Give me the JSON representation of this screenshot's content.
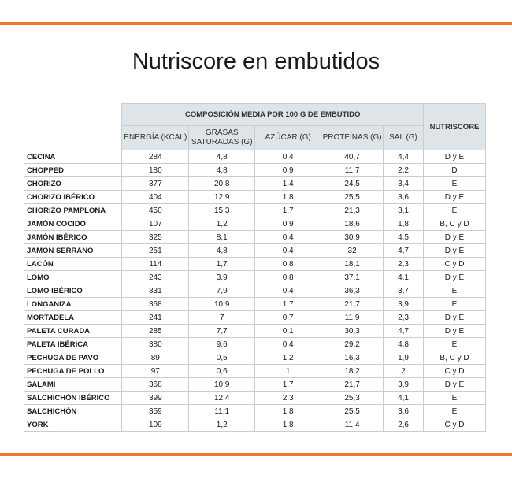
{
  "title": "Nutriscore en embutidos",
  "table": {
    "group_header": "COMPOSICIÓN MEDIA POR 100 G DE EMBUTIDO",
    "nutriscore_header": "NUTRISCORE",
    "columns": [
      "ENERGÍA (KCAL)",
      "GRASAS SATURADAS (G)",
      "AZÚCAR (G)",
      "PROTEÍNAS (G)",
      "SAL (G)"
    ],
    "rows": [
      {
        "name": "CECINA",
        "energia": "284",
        "grasas": "4,8",
        "azucar": "0,4",
        "proteinas": "40,7",
        "sal": "4,4",
        "nutriscore": "D y E"
      },
      {
        "name": "CHOPPED",
        "energia": "180",
        "grasas": "4,8",
        "azucar": "0,9",
        "proteinas": "11,7",
        "sal": "2,2",
        "nutriscore": "D"
      },
      {
        "name": "CHORIZO",
        "energia": "377",
        "grasas": "20,8",
        "azucar": "1,4",
        "proteinas": "24,5",
        "sal": "3,4",
        "nutriscore": "E"
      },
      {
        "name": "CHORIZO IBÉRICO",
        "energia": "404",
        "grasas": "12,9",
        "azucar": "1,8",
        "proteinas": "25,5",
        "sal": "3,6",
        "nutriscore": "D y E"
      },
      {
        "name": "CHORIZO PAMPLONA",
        "energia": "450",
        "grasas": "15,3",
        "azucar": "1,7",
        "proteinas": "21,3",
        "sal": "3,1",
        "nutriscore": "E"
      },
      {
        "name": "JAMÓN COCIDO",
        "energia": "107",
        "grasas": "1,2",
        "azucar": "0,9",
        "proteinas": "18,6",
        "sal": "1,8",
        "nutriscore": "B, C y D"
      },
      {
        "name": "JAMÓN IBÉRICO",
        "energia": "325",
        "grasas": "8,1",
        "azucar": "0,4",
        "proteinas": "30,9",
        "sal": "4,5",
        "nutriscore": "D y E"
      },
      {
        "name": "JAMÓN SERRANO",
        "energia": "251",
        "grasas": "4,8",
        "azucar": "0,4",
        "proteinas": "32",
        "sal": "4,7",
        "nutriscore": "D y E"
      },
      {
        "name": "LACÓN",
        "energia": "114",
        "grasas": "1,7",
        "azucar": "0,8",
        "proteinas": "18,1",
        "sal": "2,3",
        "nutriscore": "C y D"
      },
      {
        "name": "LOMO",
        "energia": "243",
        "grasas": "3,9",
        "azucar": "0,8",
        "proteinas": "37,1",
        "sal": "4,1",
        "nutriscore": "D y E"
      },
      {
        "name": "LOMO IBÉRICO",
        "energia": "331",
        "grasas": "7,9",
        "azucar": "0,4",
        "proteinas": "36,3",
        "sal": "3,7",
        "nutriscore": "E"
      },
      {
        "name": "LONGANIZA",
        "energia": "368",
        "grasas": "10,9",
        "azucar": "1,7",
        "proteinas": "21,7",
        "sal": "3,9",
        "nutriscore": "E"
      },
      {
        "name": "MORTADELA",
        "energia": "241",
        "grasas": "7",
        "azucar": "0,7",
        "proteinas": "11,9",
        "sal": "2,3",
        "nutriscore": "D y E"
      },
      {
        "name": "PALETA CURADA",
        "energia": "285",
        "grasas": "7,7",
        "azucar": "0,1",
        "proteinas": "30,3",
        "sal": "4,7",
        "nutriscore": "D y E"
      },
      {
        "name": "PALETA IBÉRICA",
        "energia": "380",
        "grasas": "9,6",
        "azucar": "0,4",
        "proteinas": "29,2",
        "sal": "4,8",
        "nutriscore": "E"
      },
      {
        "name": "PECHUGA DE PAVO",
        "energia": "89",
        "grasas": "0,5",
        "azucar": "1,2",
        "proteinas": "16,3",
        "sal": "1,9",
        "nutriscore": "B, C y D"
      },
      {
        "name": "PECHUGA DE POLLO",
        "energia": "97",
        "grasas": "0,6",
        "azucar": "1",
        "proteinas": "18,2",
        "sal": "2",
        "nutriscore": "C y D"
      },
      {
        "name": "SALAMI",
        "energia": "368",
        "grasas": "10,9",
        "azucar": "1,7",
        "proteinas": "21,7",
        "sal": "3,9",
        "nutriscore": "D y E"
      },
      {
        "name": "SALCHICHÓN IBÉRICO",
        "energia": "399",
        "grasas": "12,4",
        "azucar": "2,3",
        "proteinas": "25,3",
        "sal": "4,1",
        "nutriscore": "E"
      },
      {
        "name": "SALCHICHÓN",
        "energia": "359",
        "grasas": "11,1",
        "azucar": "1,8",
        "proteinas": "25,5",
        "sal": "3,6",
        "nutriscore": "E"
      },
      {
        "name": "YORK",
        "energia": "109",
        "grasas": "1,2",
        "azucar": "1,8",
        "proteinas": "11,4",
        "sal": "2,6",
        "nutriscore": "C y D"
      }
    ]
  },
  "colors": {
    "accent_rule": "#ee7a2d",
    "header_bg": "#dfe4e8",
    "border": "#c9cdd2"
  }
}
